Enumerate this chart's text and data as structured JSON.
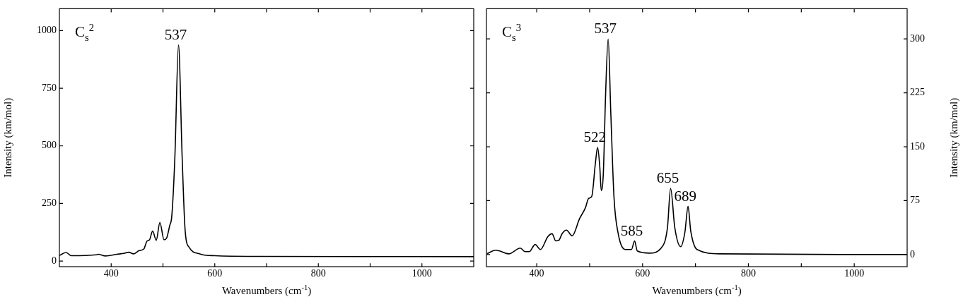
{
  "chart_data": [
    {
      "type": "line",
      "xlabel": "Wavenumbers (cm$^{-1}$)",
      "ylabel": "Intensity (km/mol)",
      "xlim": [
        300,
        1100
      ],
      "ylim": [
        -25,
        1095
      ],
      "xticks": [
        400,
        {
          "value": 500,
          "label": null
        },
        600,
        {
          "value": 700,
          "label": null
        },
        800,
        {
          "value": 900,
          "label": null
        },
        1000
      ],
      "yticks": [
        0,
        250,
        500,
        750,
        1000
      ],
      "x": [
        300,
        313,
        323,
        371,
        375,
        389,
        411,
        426,
        434,
        443,
        454,
        463,
        469,
        474,
        480,
        487,
        494,
        502,
        507,
        513,
        517,
        523,
        530,
        537,
        543,
        551,
        571,
        600,
        686,
        1100
      ],
      "series": [
        {
          "color": "#000000",
          "values": [
            24,
            37,
            23,
            27,
            29,
            22,
            29,
            34,
            38,
            31,
            45,
            52,
            86,
            92,
            130,
            90,
            167,
            92,
            99,
            154,
            194,
            452,
            938,
            452,
            126,
            58,
            31,
            23,
            20,
            19
          ]
        }
      ],
      "annotations": [
        "C$_{s}$$^{2}$",
        {
          "text": "537",
          "x": 530,
          "y": 938
        }
      ]
    },
    {
      "type": "line",
      "xlabel": "Wavenumbers (cm$^{-1}$)",
      "ylabel": "Intensity (km/mol)",
      "xlim": [
        305,
        1100
      ],
      "ylim": [
        -17,
        342
      ],
      "xticks": [
        400,
        {
          "value": 500,
          "label": null
        },
        600,
        {
          "value": 700,
          "label": null
        },
        800,
        {
          "value": 900,
          "label": null
        },
        1000
      ],
      "yticks": [
        0,
        75,
        150,
        225,
        300
      ],
      "x": [
        306,
        322,
        330,
        347,
        369,
        378,
        386,
        397,
        407,
        421,
        429,
        436,
        442,
        448,
        456,
        467,
        481,
        492,
        498,
        504,
        511,
        515,
        519,
        522,
        526,
        530,
        535,
        540,
        546,
        554,
        568,
        579,
        585,
        590,
        613,
        635,
        647,
        653,
        661,
        672,
        680,
        686,
        691,
        703,
        747,
        1078,
        1100
      ],
      "series": [
        {
          "color": "#000000",
          "values": [
            1,
            6,
            5,
            1,
            9,
            4,
            4,
            14,
            7,
            25,
            29,
            19,
            20,
            29,
            34,
            26,
            50,
            65,
            78,
            81,
            128,
            149,
            124,
            89,
            115,
            219,
            300,
            197,
            80,
            29,
            7,
            7,
            19,
            5,
            2,
            9,
            37,
            92,
            37,
            11,
            31,
            67,
            33,
            7,
            1,
            0,
            0
          ]
        }
      ],
      "annotations": [
        "C$_{s}$$^{3}$",
        {
          "text": "537",
          "x": 535,
          "y": 300
        },
        {
          "text": "522",
          "x": 515,
          "y": 149
        },
        {
          "text": "585",
          "x": 585,
          "y": 19
        },
        {
          "text": "655",
          "x": 653,
          "y": 92
        },
        {
          "text": "689",
          "x": 686,
          "y": 67
        }
      ]
    }
  ]
}
